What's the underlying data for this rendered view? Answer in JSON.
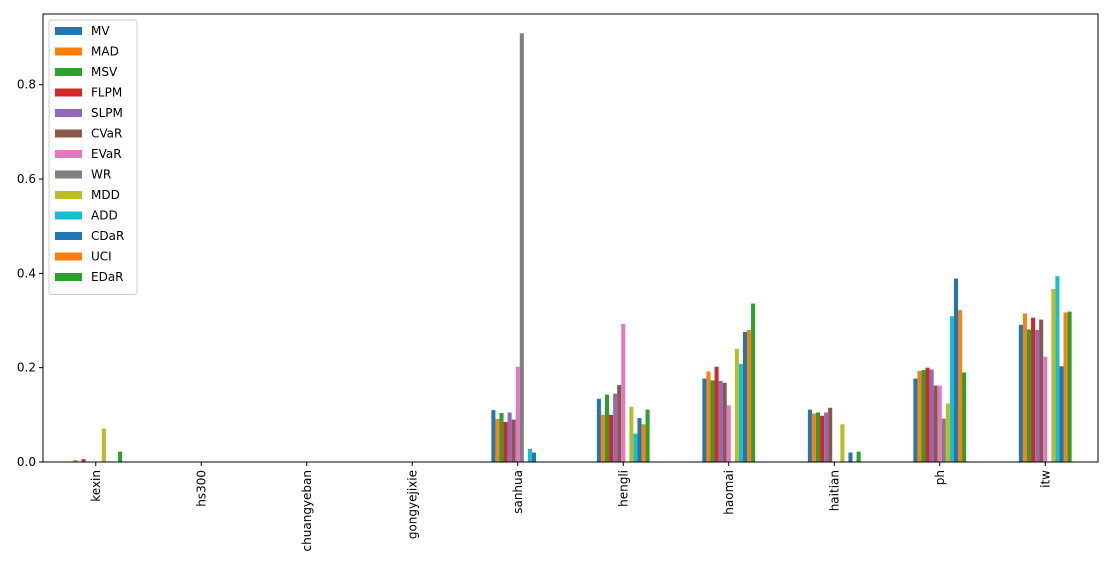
{
  "chart_data": {
    "type": "bar",
    "categories": [
      "kexin",
      "hs300",
      "chuangyeban",
      "gongyejixie",
      "sanhua",
      "hengli",
      "haomai",
      "haitian",
      "ph",
      "itw"
    ],
    "series": [
      {
        "name": "MV",
        "color": "#1f77b4",
        "values": [
          0,
          0,
          0,
          0,
          0.11,
          0.134,
          0.177,
          0.111,
          0.177,
          0.291
        ]
      },
      {
        "name": "MAD",
        "color": "#ff7f0e",
        "values": [
          0.004,
          0,
          0,
          0,
          0.091,
          0.1,
          0.192,
          0.103,
          0.193,
          0.315
        ]
      },
      {
        "name": "MSV",
        "color": "#2ca02c",
        "values": [
          0,
          0,
          0,
          0,
          0.104,
          0.143,
          0.173,
          0.105,
          0.195,
          0.281
        ]
      },
      {
        "name": "FLPM",
        "color": "#d62728",
        "values": [
          0.006,
          0,
          0,
          0,
          0.085,
          0.1,
          0.202,
          0.098,
          0.2,
          0.306
        ]
      },
      {
        "name": "SLPM",
        "color": "#9467bd",
        "values": [
          0,
          0,
          0,
          0,
          0.105,
          0.145,
          0.172,
          0.105,
          0.196,
          0.28
        ]
      },
      {
        "name": "CVaR",
        "color": "#8c564b",
        "values": [
          0,
          0,
          0,
          0,
          0.09,
          0.163,
          0.168,
          0.115,
          0.162,
          0.302
        ]
      },
      {
        "name": "EVaR",
        "color": "#e377c2",
        "values": [
          0,
          0,
          0,
          0,
          0.202,
          0.293,
          0.12,
          0,
          0.162,
          0.223
        ]
      },
      {
        "name": "WR",
        "color": "#7f7f7f",
        "values": [
          0,
          0,
          0,
          0,
          0.909,
          0,
          0,
          0,
          0.092,
          0
        ]
      },
      {
        "name": "MDD",
        "color": "#bcbd22",
        "values": [
          0.071,
          0,
          0,
          0,
          0,
          0.117,
          0.24,
          0.08,
          0.124,
          0.367
        ]
      },
      {
        "name": "ADD",
        "color": "#17becf",
        "values": [
          0,
          0,
          0,
          0,
          0.028,
          0.06,
          0.208,
          0,
          0.309,
          0.394
        ]
      },
      {
        "name": "CDaR",
        "color": "#1f77b4",
        "values": [
          0,
          0,
          0,
          0,
          0.02,
          0.093,
          0.276,
          0.02,
          0.389,
          0.203
        ]
      },
      {
        "name": "UCI",
        "color": "#ff7f0e",
        "values": [
          0,
          0,
          0,
          0,
          0,
          0.08,
          0.28,
          0,
          0.322,
          0.317
        ]
      },
      {
        "name": "EDaR",
        "color": "#2ca02c",
        "values": [
          0.022,
          0,
          0,
          0,
          0,
          0.111,
          0.336,
          0.022,
          0.19,
          0.319
        ]
      }
    ],
    "title": "",
    "xlabel": "",
    "ylabel": "",
    "ylim": [
      0,
      0.95
    ],
    "yticks": [
      "0.0",
      "0.2",
      "0.4",
      "0.6",
      "0.8"
    ],
    "grid": false,
    "legend_position": "top-left"
  }
}
